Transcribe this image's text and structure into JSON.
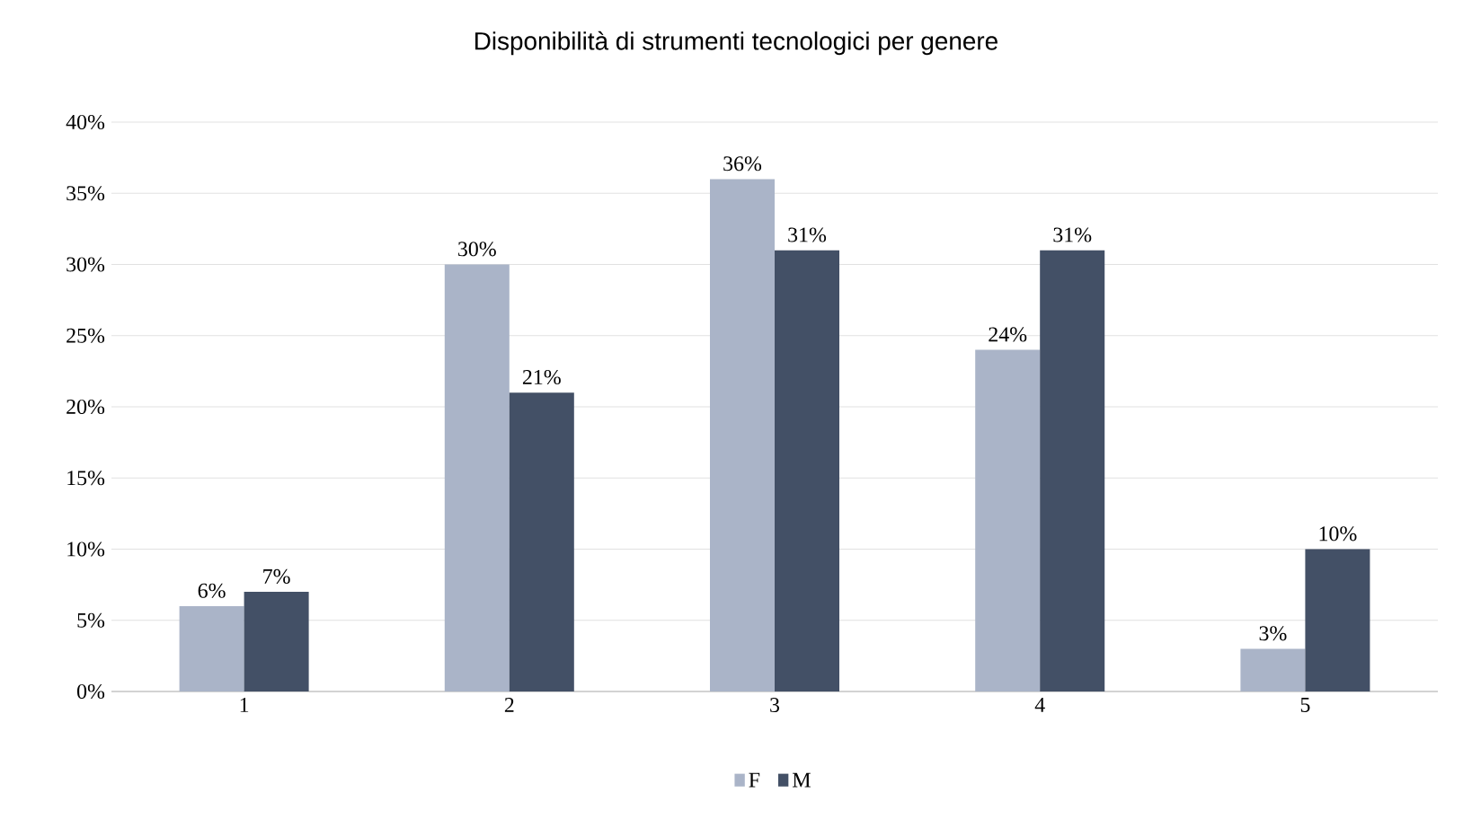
{
  "chart_data": {
    "type": "bar",
    "title": "Disponibilità di strumenti tecnologici per genere",
    "categories": [
      "1",
      "2",
      "3",
      "4",
      "5"
    ],
    "series": [
      {
        "name": "F",
        "color": "#aab4c8",
        "values": [
          6,
          30,
          36,
          24,
          3
        ],
        "value_labels": [
          "6%",
          "30%",
          "36%",
          "24%",
          "3%"
        ]
      },
      {
        "name": "M",
        "color": "#435066",
        "values": [
          7,
          21,
          31,
          31,
          10
        ],
        "value_labels": [
          "7%",
          "21%",
          "31%",
          "31%",
          "10%"
        ]
      }
    ],
    "ylim": [
      0,
      40
    ],
    "yticks": [
      {
        "value": 0,
        "label": "0%"
      },
      {
        "value": 5,
        "label": "5%"
      },
      {
        "value": 10,
        "label": "10%"
      },
      {
        "value": 15,
        "label": "15%"
      },
      {
        "value": 20,
        "label": "20%"
      },
      {
        "value": 25,
        "label": "25%"
      },
      {
        "value": 30,
        "label": "30%"
      },
      {
        "value": 35,
        "label": "35%"
      },
      {
        "value": 40,
        "label": "40%"
      }
    ],
    "grid": "y",
    "legend": "bottom"
  }
}
